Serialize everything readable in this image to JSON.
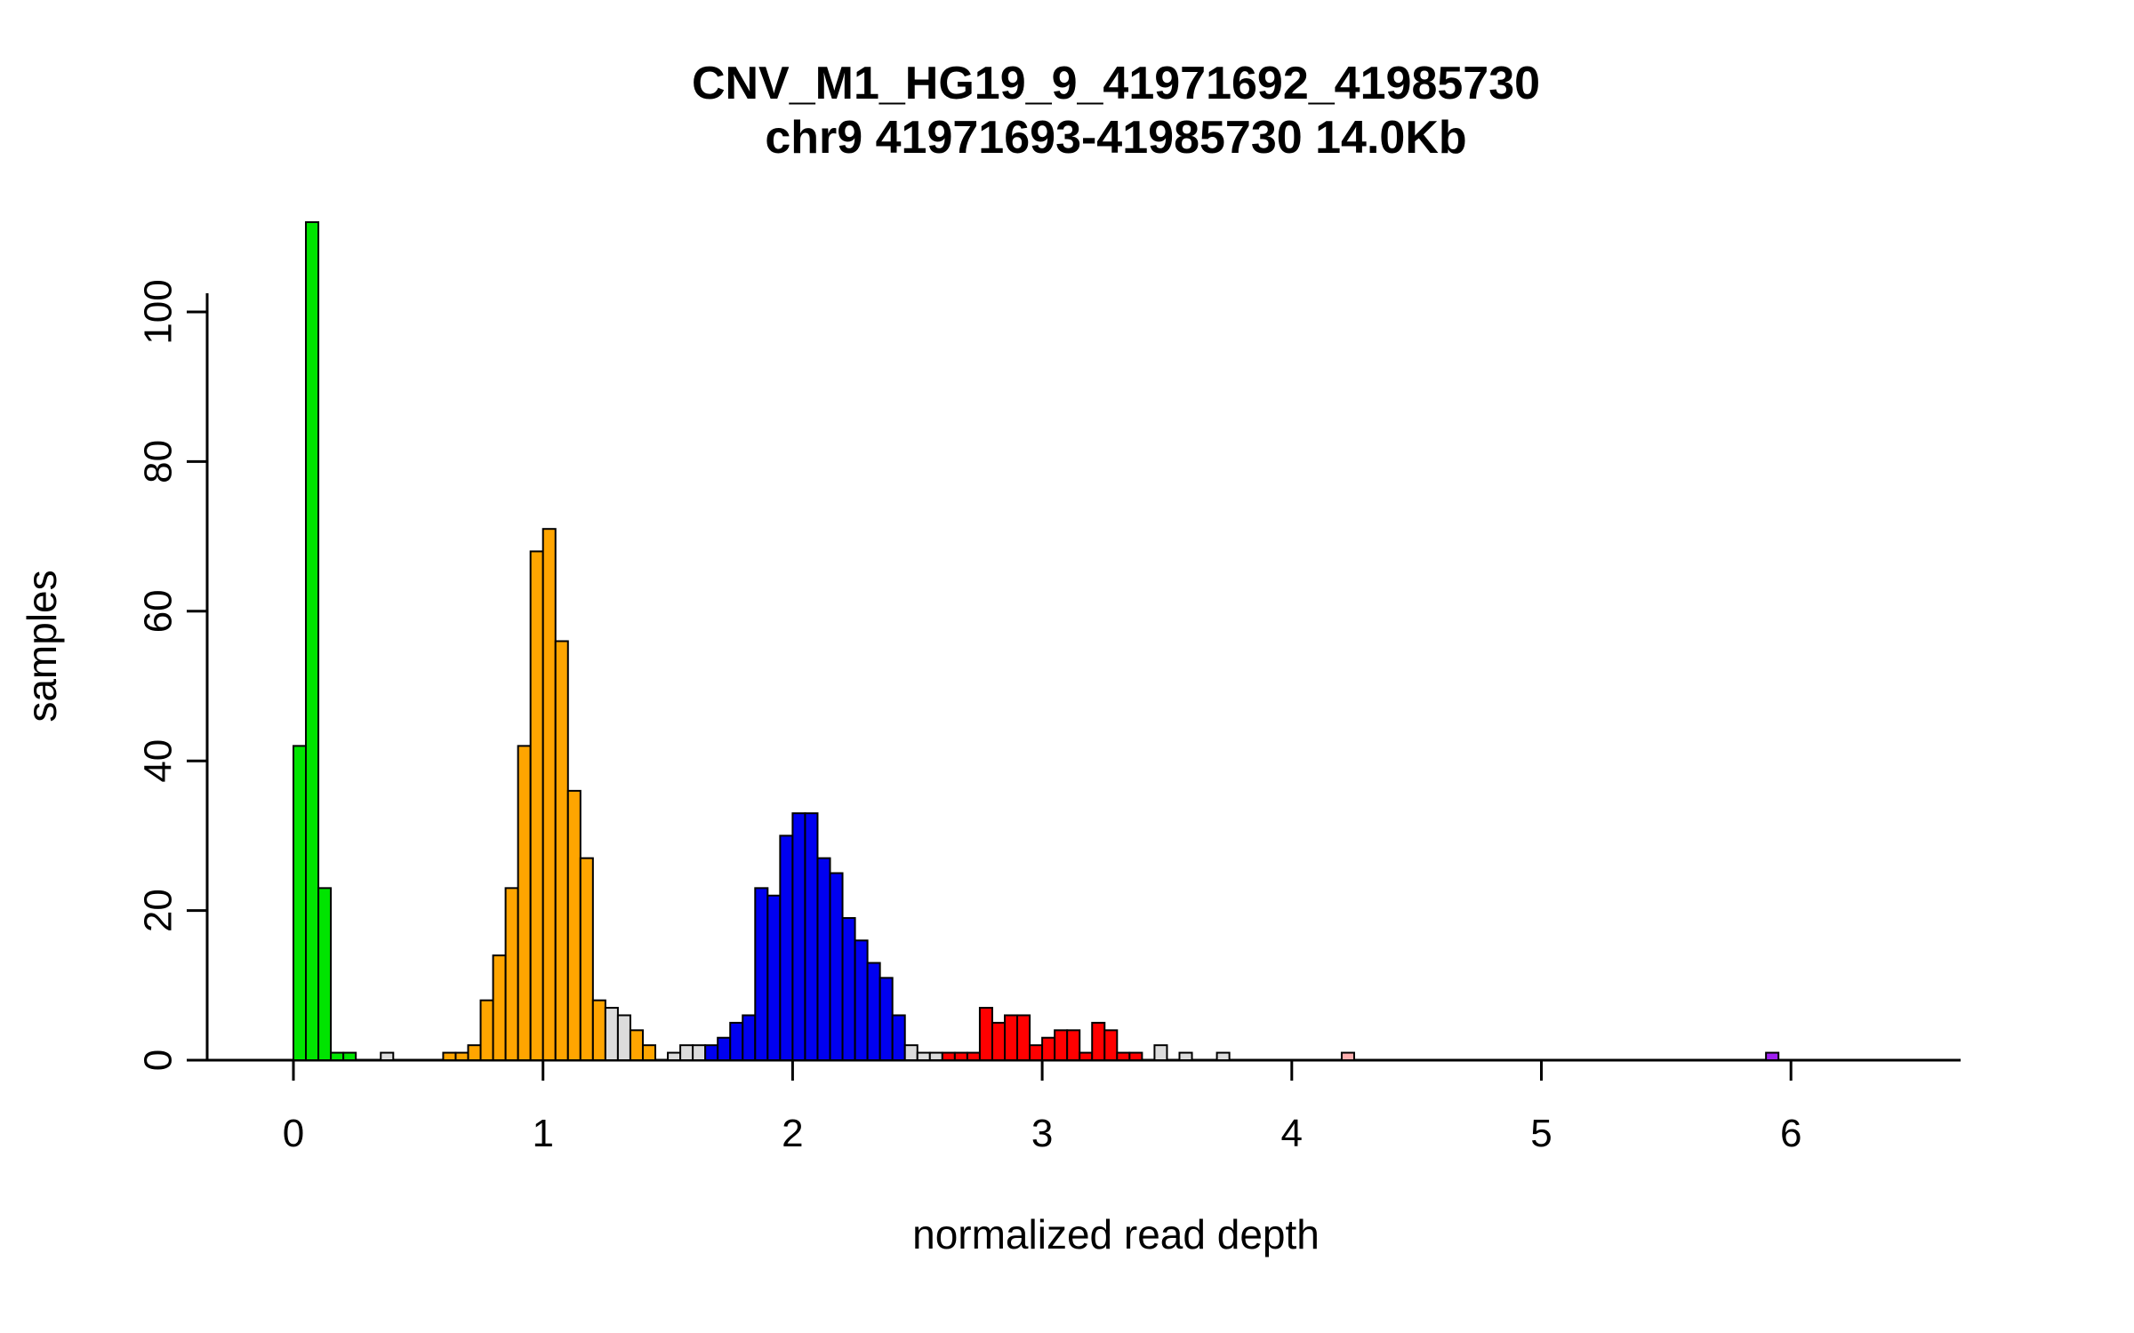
{
  "chart_data": {
    "type": "bar",
    "chart_kind": "histogram",
    "title": "CNV_M1_HG19_9_41971692_41985730",
    "subtitle": "chr9 41971693-41985730 14.0Kb",
    "xlabel": "normalized read depth",
    "ylabel": "samples",
    "x_ticks": [
      0,
      1,
      2,
      3,
      4,
      5,
      6
    ],
    "y_ticks": [
      0,
      20,
      40,
      60,
      80,
      100
    ],
    "xlim": [
      -0.35,
      6.7
    ],
    "ylim": [
      0,
      112
    ],
    "bin_width": 0.05,
    "grid": false,
    "legend": "none",
    "palette": {
      "green": "#00E400",
      "orange": "#FFA500",
      "blue": "#0000F0",
      "red": "#FF0000",
      "gray": "#DCDCDC",
      "pink": "#FFAFAF",
      "purple": "#A020F0",
      "axis": "#000000",
      "bar_border": "#000000",
      "background": "#FFFFFF"
    },
    "bins_format": [
      "x_left",
      "count",
      "color"
    ],
    "bins": [
      [
        0.0,
        42,
        "green"
      ],
      [
        0.05,
        112,
        "green"
      ],
      [
        0.1,
        23,
        "green"
      ],
      [
        0.15,
        1,
        "green"
      ],
      [
        0.2,
        1,
        "green"
      ],
      [
        0.35,
        1,
        "gray"
      ],
      [
        0.6,
        1,
        "orange"
      ],
      [
        0.65,
        1,
        "orange"
      ],
      [
        0.7,
        2,
        "orange"
      ],
      [
        0.75,
        8,
        "orange"
      ],
      [
        0.8,
        14,
        "orange"
      ],
      [
        0.85,
        23,
        "orange"
      ],
      [
        0.9,
        42,
        "orange"
      ],
      [
        0.95,
        68,
        "orange"
      ],
      [
        1.0,
        71,
        "orange"
      ],
      [
        1.05,
        56,
        "orange"
      ],
      [
        1.1,
        36,
        "orange"
      ],
      [
        1.15,
        27,
        "orange"
      ],
      [
        1.2,
        8,
        "orange"
      ],
      [
        1.25,
        7,
        "gray"
      ],
      [
        1.3,
        6,
        "gray"
      ],
      [
        1.35,
        4,
        "orange"
      ],
      [
        1.4,
        2,
        "orange"
      ],
      [
        1.5,
        1,
        "gray"
      ],
      [
        1.55,
        2,
        "gray"
      ],
      [
        1.6,
        2,
        "gray"
      ],
      [
        1.65,
        2,
        "blue"
      ],
      [
        1.7,
        3,
        "blue"
      ],
      [
        1.75,
        5,
        "blue"
      ],
      [
        1.8,
        6,
        "blue"
      ],
      [
        1.85,
        23,
        "blue"
      ],
      [
        1.9,
        22,
        "blue"
      ],
      [
        1.95,
        30,
        "blue"
      ],
      [
        2.0,
        33,
        "blue"
      ],
      [
        2.05,
        33,
        "blue"
      ],
      [
        2.1,
        27,
        "blue"
      ],
      [
        2.15,
        25,
        "blue"
      ],
      [
        2.2,
        19,
        "blue"
      ],
      [
        2.25,
        16,
        "blue"
      ],
      [
        2.3,
        13,
        "blue"
      ],
      [
        2.35,
        11,
        "blue"
      ],
      [
        2.4,
        6,
        "blue"
      ],
      [
        2.45,
        2,
        "gray"
      ],
      [
        2.5,
        1,
        "gray"
      ],
      [
        2.55,
        1,
        "gray"
      ],
      [
        2.6,
        1,
        "red"
      ],
      [
        2.65,
        1,
        "red"
      ],
      [
        2.7,
        1,
        "red"
      ],
      [
        2.75,
        7,
        "red"
      ],
      [
        2.8,
        5,
        "red"
      ],
      [
        2.85,
        6,
        "red"
      ],
      [
        2.9,
        6,
        "red"
      ],
      [
        2.95,
        2,
        "red"
      ],
      [
        3.0,
        3,
        "red"
      ],
      [
        3.05,
        4,
        "red"
      ],
      [
        3.1,
        4,
        "red"
      ],
      [
        3.15,
        1,
        "red"
      ],
      [
        3.2,
        5,
        "red"
      ],
      [
        3.25,
        4,
        "red"
      ],
      [
        3.3,
        1,
        "red"
      ],
      [
        3.35,
        1,
        "red"
      ],
      [
        3.45,
        2,
        "gray"
      ],
      [
        3.55,
        1,
        "gray"
      ],
      [
        3.7,
        1,
        "gray"
      ],
      [
        4.2,
        1,
        "pink"
      ],
      [
        5.9,
        1,
        "purple"
      ]
    ]
  }
}
